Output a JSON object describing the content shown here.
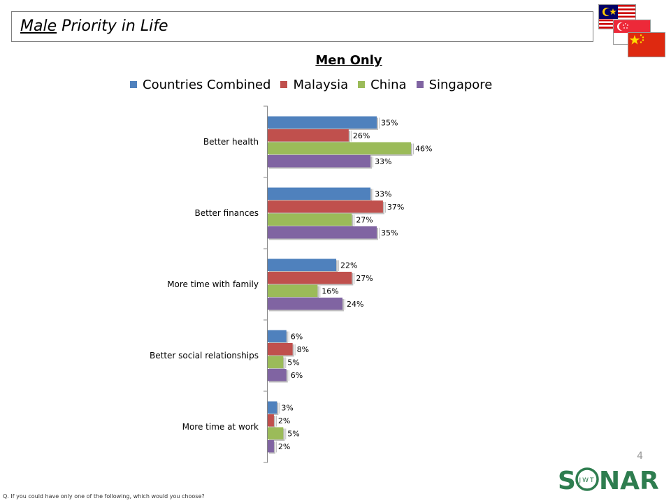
{
  "header": {
    "title_underlined": "Male",
    "title_rest": " Priority in Life"
  },
  "flags": [
    "malaysia-flag",
    "singapore-flag",
    "china-flag"
  ],
  "page_number": "4",
  "logo": {
    "text_left": "S",
    "text_right": "NAR",
    "inner": "JWT",
    "color": "#2e7d4f"
  },
  "footnote": "Q. If you could have only one of the following, which would you choose?",
  "chart_data": {
    "type": "bar",
    "orientation": "horizontal",
    "title": "Men Only",
    "categories": [
      "Better health",
      "Better finances",
      "More time with family",
      "Better social relationships",
      "More time at work"
    ],
    "series": [
      {
        "name": "Countries Combined",
        "color": "#4f81bd",
        "values": [
          35,
          33,
          22,
          6,
          3
        ]
      },
      {
        "name": "Malaysia",
        "color": "#c0504d",
        "values": [
          26,
          37,
          27,
          8,
          2
        ]
      },
      {
        "name": "China",
        "color": "#9bbb59",
        "values": [
          46,
          27,
          16,
          5,
          5
        ]
      },
      {
        "name": "Singapore",
        "color": "#8064a2",
        "values": [
          33,
          35,
          24,
          6,
          2
        ]
      }
    ],
    "value_suffix": "%",
    "legend_position": "top",
    "grid": false
  }
}
